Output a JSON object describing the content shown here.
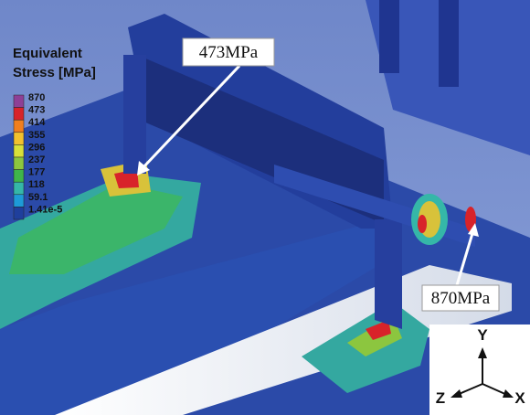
{
  "legend": {
    "title": [
      "Equivalent",
      "Stress [MPa]"
    ],
    "levels": [
      {
        "label": "870",
        "color": "#8e3f96"
      },
      {
        "label": "473",
        "color": "#d8232a"
      },
      {
        "label": "414",
        "color": "#f07f1e"
      },
      {
        "label": "355",
        "color": "#f2c12e"
      },
      {
        "label": "296",
        "color": "#d8e03a"
      },
      {
        "label": "237",
        "color": "#8cc63f"
      },
      {
        "label": "177",
        "color": "#3fb54a"
      },
      {
        "label": "118",
        "color": "#35b7a8"
      },
      {
        "label": "59.1",
        "color": "#1e9bd7"
      },
      {
        "label": "1.41e-5",
        "color": "#1f3f9c"
      }
    ]
  },
  "callouts": [
    {
      "label": "473MPa"
    },
    {
      "label": "870MPa"
    }
  ],
  "triad": {
    "y": "Y",
    "z": "Z",
    "x": "X"
  }
}
